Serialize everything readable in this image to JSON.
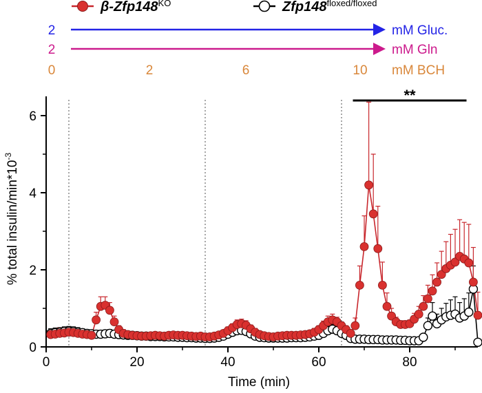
{
  "colors": {
    "ko": "#c8262c",
    "ko_fill": "#d9312f",
    "floxed": "#000000",
    "glucose": "#2323e6",
    "glutamine": "#cc1a8c",
    "bch": "#d9873a",
    "grid": "#888888"
  },
  "legend": {
    "ko": {
      "prefix": "β-",
      "gene": "Zfp148",
      "sup": "KO"
    },
    "floxed": {
      "gene": "Zfp148",
      "sup": "floxed/floxed"
    }
  },
  "conditions": {
    "glucose": {
      "value": "2",
      "unit": "mM Gluc."
    },
    "glutamine": {
      "value": "2",
      "unit": "mM Gln"
    },
    "bch": {
      "values": [
        "0",
        "2",
        "6",
        "10"
      ],
      "unit": "mM BCH"
    }
  },
  "significance": "**",
  "chart_data": {
    "type": "line",
    "xlabel": "Time (min)",
    "ylabel": "% total insulin/min*10",
    "ylabel_sup": "-3",
    "xlim": [
      0,
      95
    ],
    "ylim": [
      0,
      6.5
    ],
    "xticks": [
      0,
      20,
      40,
      60,
      80
    ],
    "yticks": [
      0,
      2,
      4,
      6
    ],
    "vlines": [
      5,
      35,
      65
    ],
    "significance_bar": [
      67.5,
      92.5
    ],
    "x": [
      1,
      2,
      3,
      4,
      5,
      6,
      7,
      8,
      9,
      10,
      11,
      12,
      13,
      14,
      15,
      16,
      17,
      18,
      19,
      20,
      21,
      22,
      23,
      24,
      25,
      26,
      27,
      28,
      29,
      30,
      31,
      32,
      33,
      34,
      35,
      36,
      37,
      38,
      39,
      40,
      41,
      42,
      43,
      44,
      45,
      46,
      47,
      48,
      49,
      50,
      51,
      52,
      53,
      54,
      55,
      56,
      57,
      58,
      59,
      60,
      61,
      62,
      63,
      64,
      65,
      66,
      67,
      68,
      69,
      70,
      71,
      72,
      73,
      74,
      75,
      76,
      77,
      78,
      79,
      80,
      81,
      82,
      83,
      84,
      85,
      86,
      87,
      88,
      89,
      90,
      91,
      92,
      93,
      94,
      95
    ],
    "series": [
      {
        "name": "β-Zfp148KO",
        "values": [
          0.32,
          0.33,
          0.35,
          0.36,
          0.38,
          0.37,
          0.35,
          0.33,
          0.32,
          0.3,
          0.7,
          1.05,
          1.08,
          0.95,
          0.65,
          0.45,
          0.35,
          0.32,
          0.3,
          0.29,
          0.28,
          0.28,
          0.29,
          0.3,
          0.29,
          0.28,
          0.3,
          0.31,
          0.3,
          0.3,
          0.29,
          0.28,
          0.27,
          0.28,
          0.26,
          0.26,
          0.28,
          0.31,
          0.35,
          0.42,
          0.5,
          0.58,
          0.6,
          0.56,
          0.47,
          0.38,
          0.32,
          0.29,
          0.27,
          0.26,
          0.28,
          0.29,
          0.3,
          0.3,
          0.3,
          0.31,
          0.32,
          0.34,
          0.38,
          0.45,
          0.55,
          0.65,
          0.7,
          0.65,
          0.55,
          0.45,
          0.35,
          0.55,
          1.6,
          2.6,
          4.2,
          3.45,
          2.55,
          1.6,
          1.05,
          0.8,
          0.65,
          0.58,
          0.58,
          0.6,
          0.72,
          0.85,
          1.05,
          1.25,
          1.45,
          1.68,
          1.88,
          2.03,
          2.12,
          2.2,
          2.35,
          2.28,
          2.18,
          1.68,
          0.82
        ],
        "errors": [
          0.1,
          0.12,
          0.14,
          0.12,
          0.12,
          0.11,
          0.1,
          0.1,
          0.1,
          0.1,
          0.2,
          0.25,
          0.22,
          0.2,
          0.15,
          0.1,
          0.1,
          0.08,
          0.08,
          0.08,
          0.08,
          0.08,
          0.08,
          0.08,
          0.08,
          0.08,
          0.08,
          0.08,
          0.08,
          0.08,
          0.08,
          0.08,
          0.08,
          0.08,
          0.08,
          0.08,
          0.08,
          0.08,
          0.08,
          0.1,
          0.1,
          0.12,
          0.12,
          0.12,
          0.1,
          0.1,
          0.08,
          0.08,
          0.08,
          0.08,
          0.08,
          0.08,
          0.08,
          0.08,
          0.08,
          0.08,
          0.08,
          0.08,
          0.1,
          0.1,
          0.12,
          0.15,
          0.15,
          0.12,
          0.1,
          0.1,
          0.1,
          0.2,
          0.5,
          0.8,
          2.15,
          1.55,
          1.1,
          0.6,
          0.35,
          0.2,
          0.12,
          0.1,
          0.1,
          0.1,
          0.15,
          0.2,
          0.28,
          0.35,
          0.42,
          0.5,
          0.6,
          0.7,
          0.8,
          0.85,
          0.95,
          0.95,
          1.0,
          0.9,
          0.6
        ]
      },
      {
        "name": "Zfp148floxed/floxed",
        "values": [
          0.35,
          0.37,
          0.38,
          0.4,
          0.41,
          0.4,
          0.38,
          0.37,
          0.35,
          0.34,
          0.33,
          0.33,
          0.34,
          0.35,
          0.33,
          0.32,
          0.31,
          0.3,
          0.3,
          0.29,
          0.28,
          0.28,
          0.27,
          0.27,
          0.27,
          0.26,
          0.26,
          0.26,
          0.25,
          0.25,
          0.24,
          0.24,
          0.23,
          0.23,
          0.22,
          0.22,
          0.23,
          0.25,
          0.28,
          0.33,
          0.38,
          0.42,
          0.43,
          0.4,
          0.34,
          0.28,
          0.25,
          0.24,
          0.23,
          0.23,
          0.23,
          0.23,
          0.23,
          0.24,
          0.24,
          0.24,
          0.25,
          0.26,
          0.28,
          0.3,
          0.35,
          0.42,
          0.46,
          0.42,
          0.35,
          0.3,
          0.22,
          0.2,
          0.2,
          0.2,
          0.19,
          0.19,
          0.19,
          0.18,
          0.18,
          0.18,
          0.18,
          0.17,
          0.17,
          0.16,
          0.16,
          0.16,
          0.25,
          0.55,
          0.8,
          0.6,
          0.7,
          0.78,
          0.82,
          0.85,
          0.75,
          0.8,
          0.9,
          1.5,
          0.12
        ],
        "errors": [
          0.12,
          0.12,
          0.12,
          0.12,
          0.12,
          0.12,
          0.12,
          0.1,
          0.1,
          0.1,
          0.1,
          0.1,
          0.1,
          0.1,
          0.08,
          0.08,
          0.08,
          0.08,
          0.08,
          0.07,
          0.07,
          0.07,
          0.07,
          0.07,
          0.07,
          0.07,
          0.07,
          0.07,
          0.07,
          0.07,
          0.06,
          0.06,
          0.06,
          0.06,
          0.06,
          0.06,
          0.06,
          0.06,
          0.07,
          0.08,
          0.1,
          0.12,
          0.12,
          0.1,
          0.08,
          0.07,
          0.06,
          0.06,
          0.06,
          0.06,
          0.06,
          0.06,
          0.06,
          0.06,
          0.06,
          0.06,
          0.06,
          0.06,
          0.07,
          0.08,
          0.1,
          0.12,
          0.12,
          0.1,
          0.08,
          0.07,
          0.05,
          0.05,
          0.05,
          0.05,
          0.05,
          0.05,
          0.05,
          0.05,
          0.05,
          0.05,
          0.05,
          0.05,
          0.05,
          0.05,
          0.05,
          0.05,
          0.08,
          0.2,
          0.35,
          0.25,
          0.3,
          0.35,
          0.4,
          0.45,
          0.4,
          0.45,
          0.5,
          0.6,
          0.05
        ]
      }
    ]
  }
}
